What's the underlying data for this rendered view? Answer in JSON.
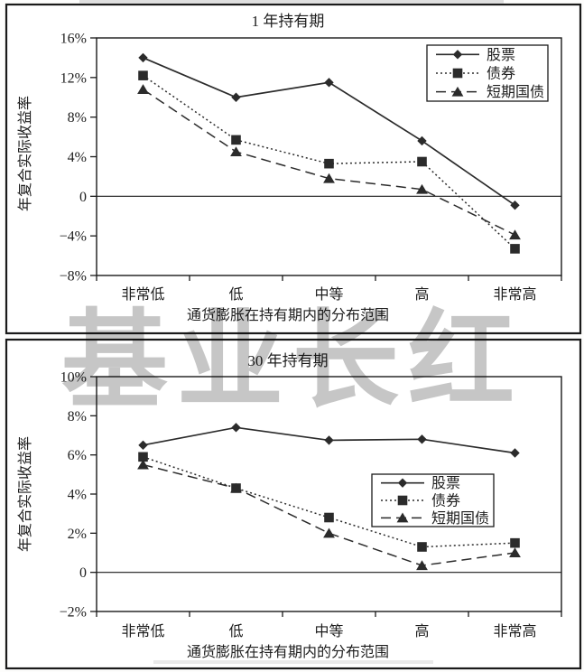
{
  "page": {
    "watermark": "基业长红"
  },
  "colors": {
    "ink": "#2b2b2b",
    "frame": "#1a1a1a",
    "text": "#1d1d1d",
    "watermark": "#c6c6c6",
    "background": "#fdfdfc",
    "plot_background": "#ffffff"
  },
  "chart_data": [
    {
      "type": "line",
      "title": "1 年持有期",
      "xlabel": "通货膨胀在持有期内的分布范围",
      "ylabel": "年复合实际收益率",
      "categories": [
        "非常低",
        "低",
        "中等",
        "高",
        "非常高"
      ],
      "ylim": [
        -8,
        16
      ],
      "yticks": [
        -8,
        -4,
        0,
        4,
        8,
        12,
        16
      ],
      "ytick_labels": [
        "−8%",
        "−4%",
        "0",
        "4%",
        "8%",
        "12%",
        "16%"
      ],
      "grid": false,
      "zero_line": true,
      "legend_position": "top-right",
      "legend_entries": [
        "股票",
        "债券",
        "短期国债"
      ],
      "series": [
        {
          "name": "股票",
          "marker": "diamond",
          "line_style": "solid",
          "values": [
            14.0,
            10.0,
            11.5,
            5.6,
            -0.9
          ]
        },
        {
          "name": "债券",
          "marker": "square",
          "line_style": "dotted",
          "values": [
            12.2,
            5.7,
            3.3,
            3.5,
            -5.3
          ]
        },
        {
          "name": "短期国债",
          "marker": "triangle",
          "line_style": "dashed",
          "values": [
            10.8,
            4.5,
            1.8,
            0.7,
            -3.9
          ]
        }
      ]
    },
    {
      "type": "line",
      "title": "30 年持有期",
      "xlabel": "通货膨胀在持有期内的分布范围",
      "ylabel": "年复合实际收益率",
      "categories": [
        "非常低",
        "低",
        "中等",
        "高",
        "非常高"
      ],
      "ylim": [
        -2,
        10
      ],
      "yticks": [
        -2,
        0,
        2,
        4,
        6,
        8,
        10
      ],
      "ytick_labels": [
        "−2%",
        "0",
        "2%",
        "4%",
        "6%",
        "8%",
        "10%"
      ],
      "grid": false,
      "zero_line": true,
      "legend_position": "middle-right",
      "legend_entries": [
        "股票",
        "债券",
        "短期国债"
      ],
      "series": [
        {
          "name": "股票",
          "marker": "diamond",
          "line_style": "solid",
          "values": [
            6.5,
            7.4,
            6.75,
            6.8,
            6.1
          ]
        },
        {
          "name": "债券",
          "marker": "square",
          "line_style": "dotted",
          "values": [
            5.9,
            4.3,
            2.8,
            1.3,
            1.5
          ]
        },
        {
          "name": "短期国债",
          "marker": "triangle",
          "line_style": "dashed",
          "values": [
            5.5,
            4.3,
            2.0,
            0.35,
            1.0
          ]
        }
      ]
    }
  ]
}
